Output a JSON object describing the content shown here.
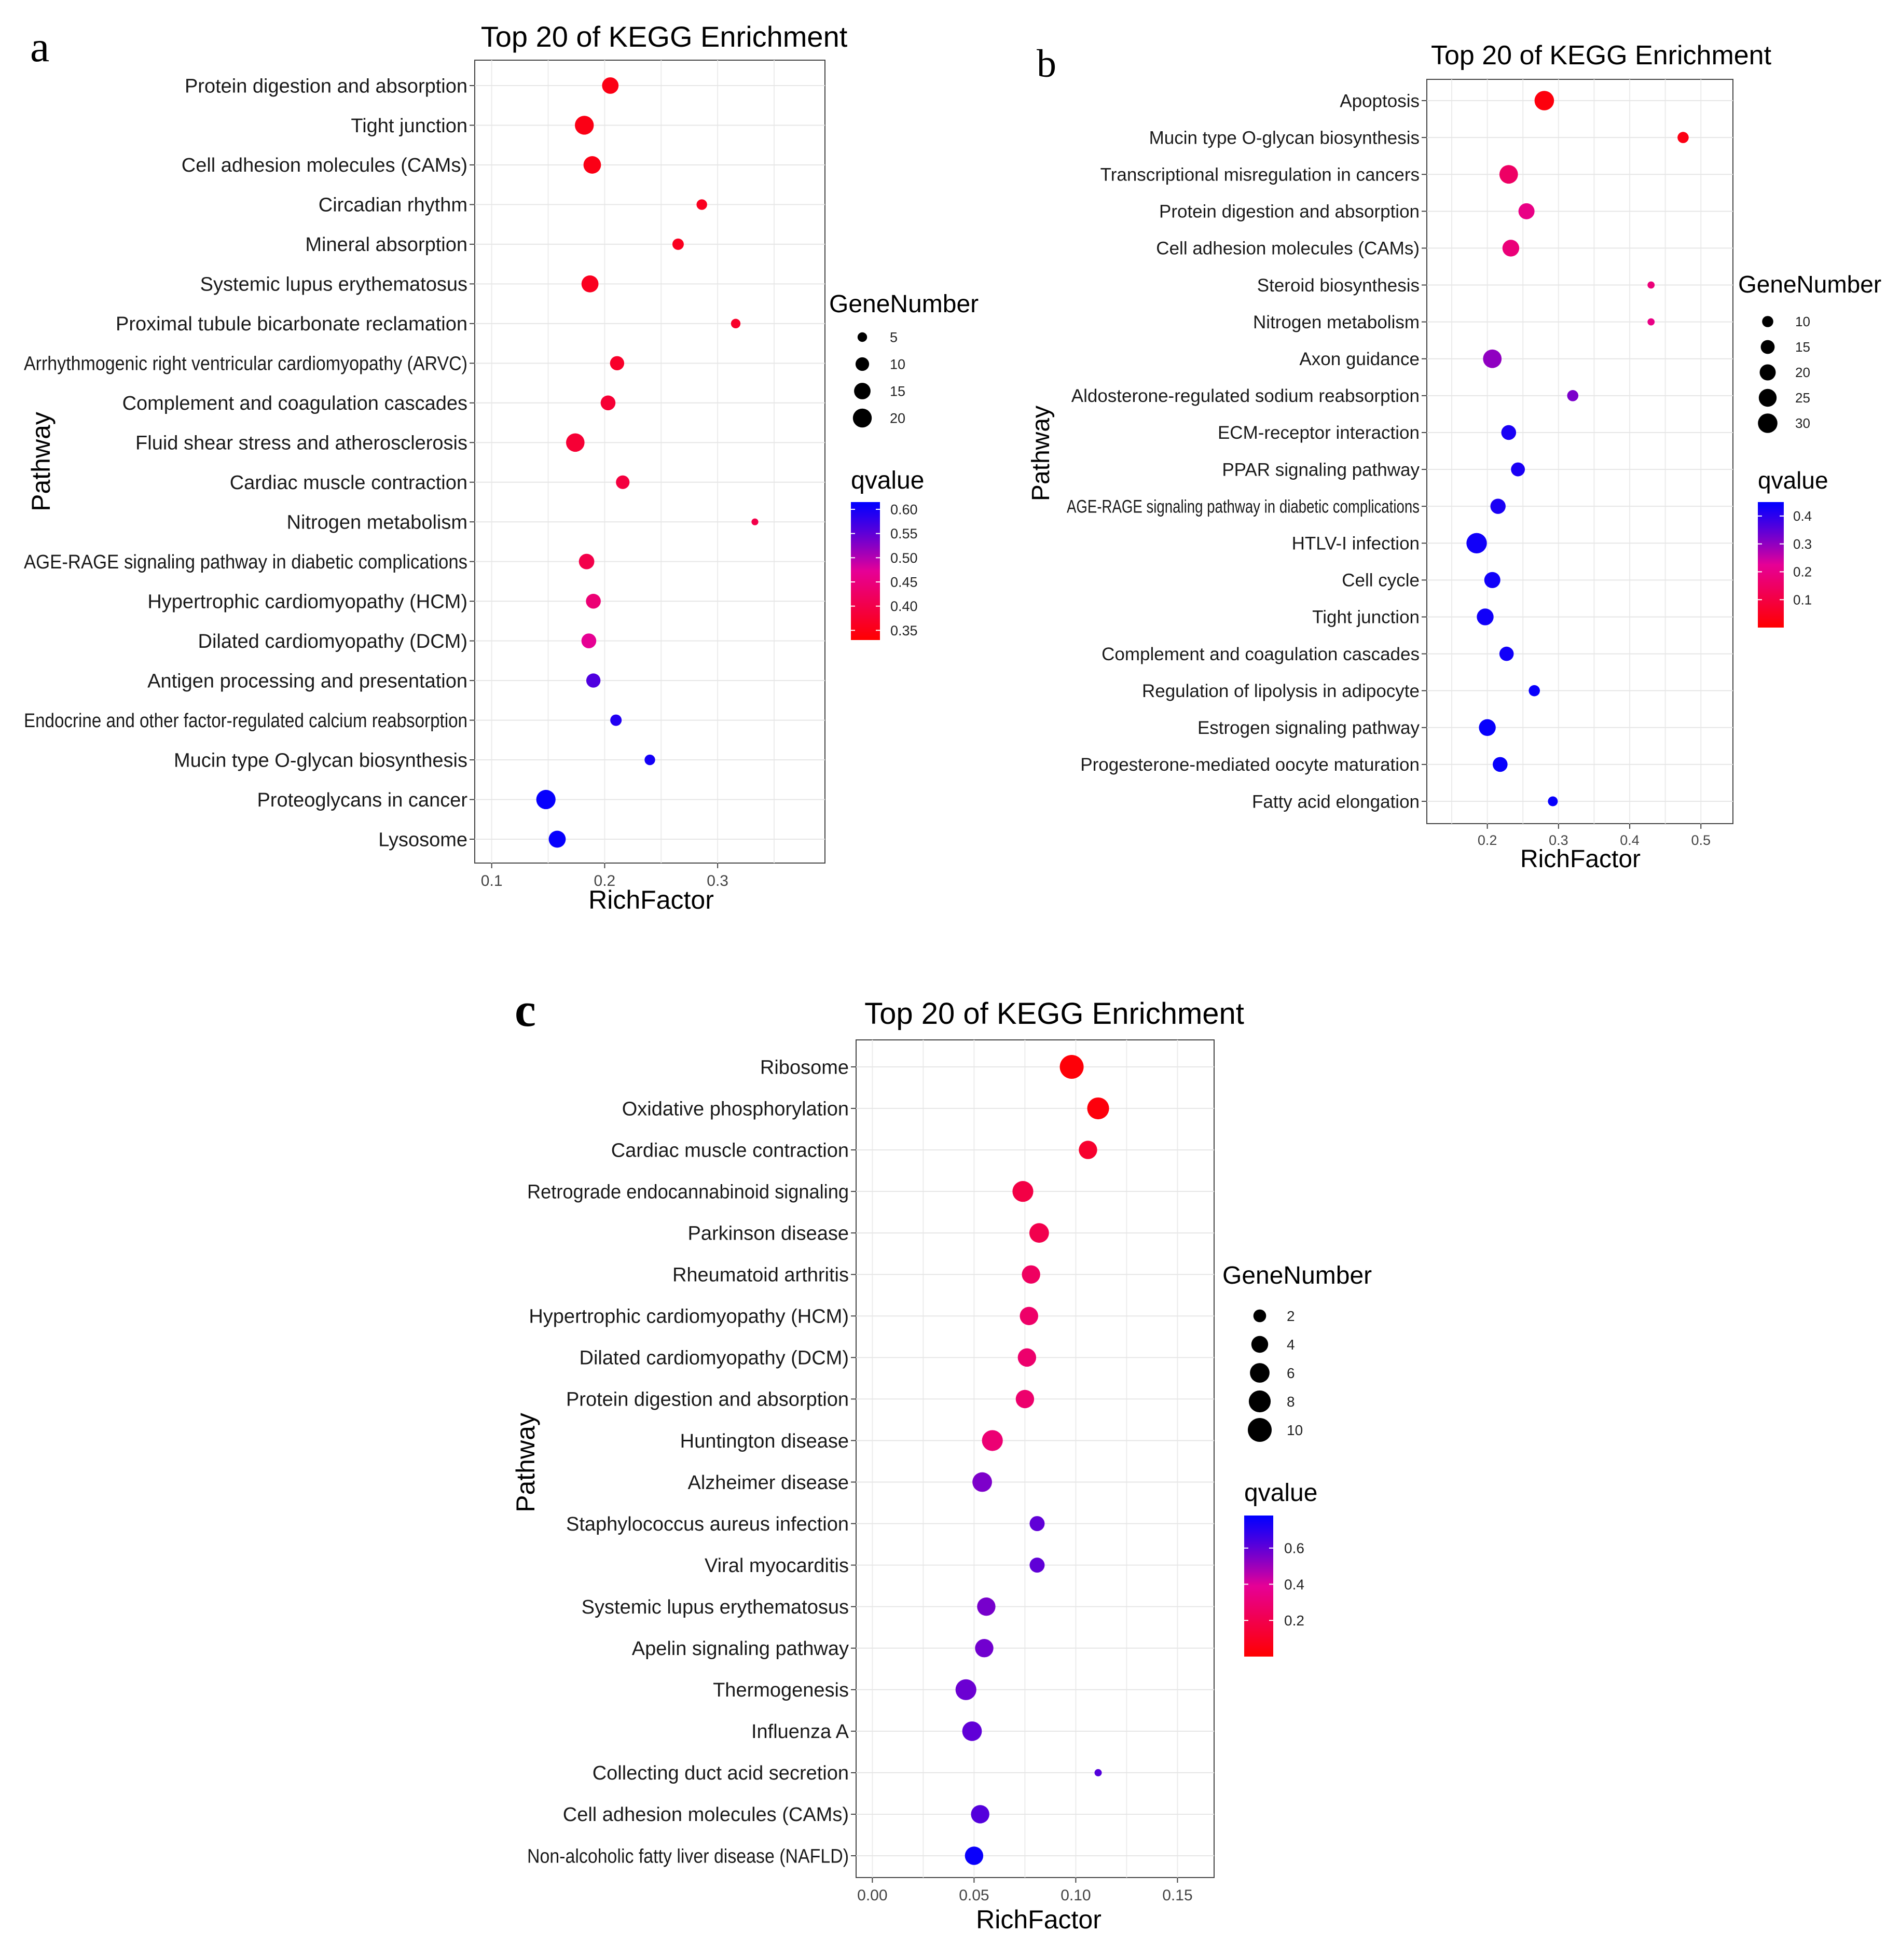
{
  "chart_data": [
    {
      "type": "scatter",
      "panel_label": "a",
      "title": "Top 20 of KEGG Enrichment",
      "xlabel": "RichFactor",
      "ylabel": "Pathway",
      "xlim": [
        0.085,
        0.395
      ],
      "xticks": [
        0.1,
        0.2,
        0.3
      ],
      "xtick_labels": [
        "0.1",
        "0.2",
        "0.3"
      ],
      "grid": true,
      "categories": [
        "Protein digestion and absorption",
        "Tight junction",
        "Cell adhesion molecules (CAMs)",
        "Circadian rhythm",
        "Mineral absorption",
        "Systemic lupus erythematosus",
        "Proximal tubule bicarbonate reclamation",
        "Arrhythmogenic right ventricular cardiomyopathy (ARVC)",
        "Complement and coagulation cascades",
        "Fluid shear stress and atherosclerosis",
        "Cardiac muscle contraction",
        "Nitrogen metabolism",
        "AGE-RAGE signaling pathway in diabetic complications",
        "Hypertrophic cardiomyopathy (HCM)",
        "Dilated cardiomyopathy (DCM)",
        "Antigen processing and presentation",
        "Endocrine and other factor-regulated calcium reabsorption",
        "Mucin type O-glycan biosynthesis",
        "Proteoglycans in cancer",
        "Lysosome"
      ],
      "points": [
        {
          "pathway": "Protein digestion and absorption",
          "rich_factor": 0.205,
          "gene_number": 15,
          "qvalue": 0.35
        },
        {
          "pathway": "Tight junction",
          "rich_factor": 0.182,
          "gene_number": 20,
          "qvalue": 0.35
        },
        {
          "pathway": "Cell adhesion molecules (CAMs)",
          "rich_factor": 0.189,
          "gene_number": 17,
          "qvalue": 0.35
        },
        {
          "pathway": "Circadian rhythm",
          "rich_factor": 0.286,
          "gene_number": 6,
          "qvalue": 0.36
        },
        {
          "pathway": "Mineral absorption",
          "rich_factor": 0.265,
          "gene_number": 7,
          "qvalue": 0.36
        },
        {
          "pathway": "Systemic lupus erythematosus",
          "rich_factor": 0.187,
          "gene_number": 16,
          "qvalue": 0.36
        },
        {
          "pathway": "Proximal tubule bicarbonate reclamation",
          "rich_factor": 0.316,
          "gene_number": 5,
          "qvalue": 0.37
        },
        {
          "pathway": "Arrhythmogenic right ventricular cardiomyopathy (ARVC)",
          "rich_factor": 0.211,
          "gene_number": 11,
          "qvalue": 0.37
        },
        {
          "pathway": "Complement and coagulation cascades",
          "rich_factor": 0.203,
          "gene_number": 12,
          "qvalue": 0.38
        },
        {
          "pathway": "Fluid shear stress and atherosclerosis",
          "rich_factor": 0.174,
          "gene_number": 19,
          "qvalue": 0.38
        },
        {
          "pathway": "Cardiac muscle contraction",
          "rich_factor": 0.216,
          "gene_number": 10,
          "qvalue": 0.39
        },
        {
          "pathway": "Nitrogen metabolism",
          "rich_factor": 0.333,
          "gene_number": 3,
          "qvalue": 0.4
        },
        {
          "pathway": "AGE-RAGE signaling pathway in diabetic complications",
          "rich_factor": 0.184,
          "gene_number": 13,
          "qvalue": 0.4
        },
        {
          "pathway": "Hypertrophic cardiomyopathy (HCM)",
          "rich_factor": 0.19,
          "gene_number": 12,
          "qvalue": 0.44
        },
        {
          "pathway": "Dilated cardiomyopathy (DCM)",
          "rich_factor": 0.186,
          "gene_number": 12,
          "qvalue": 0.47
        },
        {
          "pathway": "Antigen processing and presentation",
          "rich_factor": 0.19,
          "gene_number": 11,
          "qvalue": 0.56
        },
        {
          "pathway": "Endocrine and other factor-regulated calcium reabsorption",
          "rich_factor": 0.21,
          "gene_number": 7,
          "qvalue": 0.59
        },
        {
          "pathway": "Mucin type O-glycan biosynthesis",
          "rich_factor": 0.24,
          "gene_number": 6,
          "qvalue": 0.6
        },
        {
          "pathway": "Proteoglycans in cancer",
          "rich_factor": 0.148,
          "gene_number": 21,
          "qvalue": 0.61
        },
        {
          "pathway": "Lysosome",
          "rich_factor": 0.158,
          "gene_number": 16,
          "qvalue": 0.61
        }
      ],
      "size_legend": {
        "title": "GeneNumber",
        "values": [
          5,
          10,
          15,
          20
        ]
      },
      "color_legend": {
        "title": "qvalue",
        "min": 0.33,
        "max": 0.615,
        "ticks": [
          0.6,
          0.55,
          0.5,
          0.45,
          0.4,
          0.35
        ],
        "tick_labels": [
          "0.60",
          "0.55",
          "0.50",
          "0.45",
          "0.40",
          "0.35"
        ],
        "low_color": "#ff0000",
        "high_color": "#0000ff"
      }
    },
    {
      "type": "scatter",
      "panel_label": "b",
      "title": "Top 20 of KEGG Enrichment",
      "xlabel": "RichFactor",
      "ylabel": "Pathway",
      "xlim": [
        0.115,
        0.545
      ],
      "xticks": [
        0.2,
        0.3,
        0.4,
        0.5
      ],
      "xtick_labels": [
        "0.2",
        "0.3",
        "0.4",
        "0.5"
      ],
      "grid": true,
      "categories": [
        "Apoptosis",
        "Mucin type O-glycan biosynthesis",
        "Transcriptional misregulation in cancers",
        "Protein digestion and absorption",
        "Cell adhesion molecules (CAMs)",
        "Steroid biosynthesis",
        "Nitrogen metabolism",
        "Axon guidance",
        "Aldosterone-regulated sodium reabsorption",
        "ECM-receptor interaction",
        "PPAR signaling pathway",
        "AGE-RAGE signaling pathway in diabetic complications",
        "HTLV-I infection",
        "Cell cycle",
        "Tight junction",
        "Complement and coagulation cascades",
        "Regulation of lipolysis in adipocyte",
        "Estrogen signaling pathway",
        "Progesterone-mediated oocyte maturation",
        "Fatty acid elongation"
      ],
      "points": [
        {
          "pathway": "Apoptosis",
          "rich_factor": 0.28,
          "gene_number": 30,
          "qvalue": 0.02
        },
        {
          "pathway": "Mucin type O-glycan biosynthesis",
          "rich_factor": 0.475,
          "gene_number": 10,
          "qvalue": 0.03
        },
        {
          "pathway": "Transcriptional misregulation in cancers",
          "rich_factor": 0.23,
          "gene_number": 27,
          "qvalue": 0.15
        },
        {
          "pathway": "Protein digestion and absorption",
          "rich_factor": 0.255,
          "gene_number": 20,
          "qvalue": 0.2
        },
        {
          "pathway": "Cell adhesion molecules (CAMs)",
          "rich_factor": 0.233,
          "gene_number": 22,
          "qvalue": 0.18
        },
        {
          "pathway": "Steroid biosynthesis",
          "rich_factor": 0.43,
          "gene_number": 5,
          "qvalue": 0.18
        },
        {
          "pathway": "Nitrogen metabolism",
          "rich_factor": 0.43,
          "gene_number": 5,
          "qvalue": 0.2
        },
        {
          "pathway": "Axon guidance",
          "rich_factor": 0.207,
          "gene_number": 27,
          "qvalue": 0.3
        },
        {
          "pathway": "Aldosterone-regulated sodium reabsorption",
          "rich_factor": 0.32,
          "gene_number": 10,
          "qvalue": 0.32
        },
        {
          "pathway": "ECM-receptor interaction",
          "rich_factor": 0.23,
          "gene_number": 17,
          "qvalue": 0.42
        },
        {
          "pathway": "PPAR signaling pathway",
          "rich_factor": 0.243,
          "gene_number": 15,
          "qvalue": 0.42
        },
        {
          "pathway": "AGE-RAGE signaling pathway in diabetic complications",
          "rich_factor": 0.215,
          "gene_number": 18,
          "qvalue": 0.42
        },
        {
          "pathway": "HTLV-I infection",
          "rich_factor": 0.185,
          "gene_number": 33,
          "qvalue": 0.43
        },
        {
          "pathway": "Cell cycle",
          "rich_factor": 0.207,
          "gene_number": 20,
          "qvalue": 0.43
        },
        {
          "pathway": "Tight junction",
          "rich_factor": 0.197,
          "gene_number": 22,
          "qvalue": 0.43
        },
        {
          "pathway": "Complement and coagulation cascades",
          "rich_factor": 0.227,
          "gene_number": 16,
          "qvalue": 0.43
        },
        {
          "pathway": "Regulation of lipolysis in adipocyte",
          "rich_factor": 0.266,
          "gene_number": 10,
          "qvalue": 0.44
        },
        {
          "pathway": "Estrogen signaling pathway",
          "rich_factor": 0.2,
          "gene_number": 22,
          "qvalue": 0.44
        },
        {
          "pathway": "Progesterone-mediated oocyte maturation",
          "rich_factor": 0.218,
          "gene_number": 17,
          "qvalue": 0.44
        },
        {
          "pathway": "Fatty acid elongation",
          "rich_factor": 0.292,
          "gene_number": 8,
          "qvalue": 0.44
        }
      ],
      "size_legend": {
        "title": "GeneNumber",
        "values": [
          10,
          15,
          20,
          25,
          30
        ]
      },
      "color_legend": {
        "title": "qvalue",
        "min": 0.0,
        "max": 0.45,
        "ticks": [
          0.4,
          0.3,
          0.2,
          0.1
        ],
        "tick_labels": [
          "0.4",
          "0.3",
          "0.2",
          "0.1"
        ],
        "low_color": "#ff0000",
        "high_color": "#0000ff"
      }
    },
    {
      "type": "scatter",
      "panel_label": "c",
      "title": "Top 20 of KEGG Enrichment",
      "xlabel": "RichFactor",
      "ylabel": "Pathway",
      "xlim": [
        -0.008,
        0.168
      ],
      "xticks": [
        0.0,
        0.05,
        0.1,
        0.15
      ],
      "xtick_labels": [
        "0.00",
        "0.05",
        "0.10",
        "0.15"
      ],
      "grid": true,
      "categories": [
        "Ribosome",
        "Oxidative phosphorylation",
        "Cardiac muscle contraction",
        "Retrograde endocannabinoid signaling",
        "Parkinson disease",
        "Rheumatoid arthritis",
        "Hypertrophic cardiomyopathy (HCM)",
        "Dilated cardiomyopathy (DCM)",
        "Protein digestion and absorption",
        "Huntington disease",
        "Alzheimer disease",
        "Staphylococcus aureus infection",
        "Viral myocarditis",
        "Systemic lupus erythematosus",
        "Apelin signaling pathway",
        "Thermogenesis",
        "Influenza A",
        "Collecting duct acid secretion",
        "Cell adhesion molecules (CAMs)",
        "Non-alcoholic fatty liver disease (NAFLD)"
      ],
      "points": [
        {
          "pathway": "Ribosome",
          "rich_factor": 0.098,
          "gene_number": 10,
          "qvalue": 0.02
        },
        {
          "pathway": "Oxidative phosphorylation",
          "rich_factor": 0.111,
          "gene_number": 8,
          "qvalue": 0.03
        },
        {
          "pathway": "Cardiac muscle contraction",
          "rich_factor": 0.106,
          "gene_number": 5,
          "qvalue": 0.12
        },
        {
          "pathway": "Retrograde endocannabinoid signaling",
          "rich_factor": 0.074,
          "gene_number": 7,
          "qvalue": 0.18
        },
        {
          "pathway": "Parkinson disease",
          "rich_factor": 0.082,
          "gene_number": 6,
          "qvalue": 0.2
        },
        {
          "pathway": "Rheumatoid arthritis",
          "rich_factor": 0.078,
          "gene_number": 5,
          "qvalue": 0.25
        },
        {
          "pathway": "Hypertrophic cardiomyopathy (HCM)",
          "rich_factor": 0.077,
          "gene_number": 5,
          "qvalue": 0.27
        },
        {
          "pathway": "Dilated cardiomyopathy (DCM)",
          "rich_factor": 0.076,
          "gene_number": 5,
          "qvalue": 0.28
        },
        {
          "pathway": "Protein digestion and absorption",
          "rich_factor": 0.075,
          "gene_number": 5,
          "qvalue": 0.28
        },
        {
          "pathway": "Huntington disease",
          "rich_factor": 0.059,
          "gene_number": 7,
          "qvalue": 0.3
        },
        {
          "pathway": "Alzheimer disease",
          "rich_factor": 0.054,
          "gene_number": 6,
          "qvalue": 0.55
        },
        {
          "pathway": "Staphylococcus aureus infection",
          "rich_factor": 0.081,
          "gene_number": 3,
          "qvalue": 0.6
        },
        {
          "pathway": "Viral myocarditis",
          "rich_factor": 0.081,
          "gene_number": 3,
          "qvalue": 0.6
        },
        {
          "pathway": "Systemic lupus erythematosus",
          "rich_factor": 0.056,
          "gene_number": 5,
          "qvalue": 0.56
        },
        {
          "pathway": "Apelin signaling pathway",
          "rich_factor": 0.055,
          "gene_number": 5,
          "qvalue": 0.57
        },
        {
          "pathway": "Thermogenesis",
          "rich_factor": 0.046,
          "gene_number": 7,
          "qvalue": 0.58
        },
        {
          "pathway": "Influenza A",
          "rich_factor": 0.049,
          "gene_number": 6,
          "qvalue": 0.6
        },
        {
          "pathway": "Collecting duct acid secretion",
          "rich_factor": 0.111,
          "gene_number": 1,
          "qvalue": 0.62
        },
        {
          "pathway": "Cell adhesion molecules (CAMs)",
          "rich_factor": 0.053,
          "gene_number": 5,
          "qvalue": 0.62
        },
        {
          "pathway": "Non-alcoholic fatty liver disease (NAFLD)",
          "rich_factor": 0.05,
          "gene_number": 5,
          "qvalue": 0.76
        }
      ],
      "size_legend": {
        "title": "GeneNumber",
        "values": [
          2,
          4,
          6,
          8,
          10
        ]
      },
      "color_legend": {
        "title": "qvalue",
        "min": 0.0,
        "max": 0.78,
        "ticks": [
          0.6,
          0.4,
          0.2
        ],
        "tick_labels": [
          "0.6",
          "0.4",
          "0.2"
        ],
        "low_color": "#ff0000",
        "high_color": "#0000ff"
      }
    }
  ]
}
